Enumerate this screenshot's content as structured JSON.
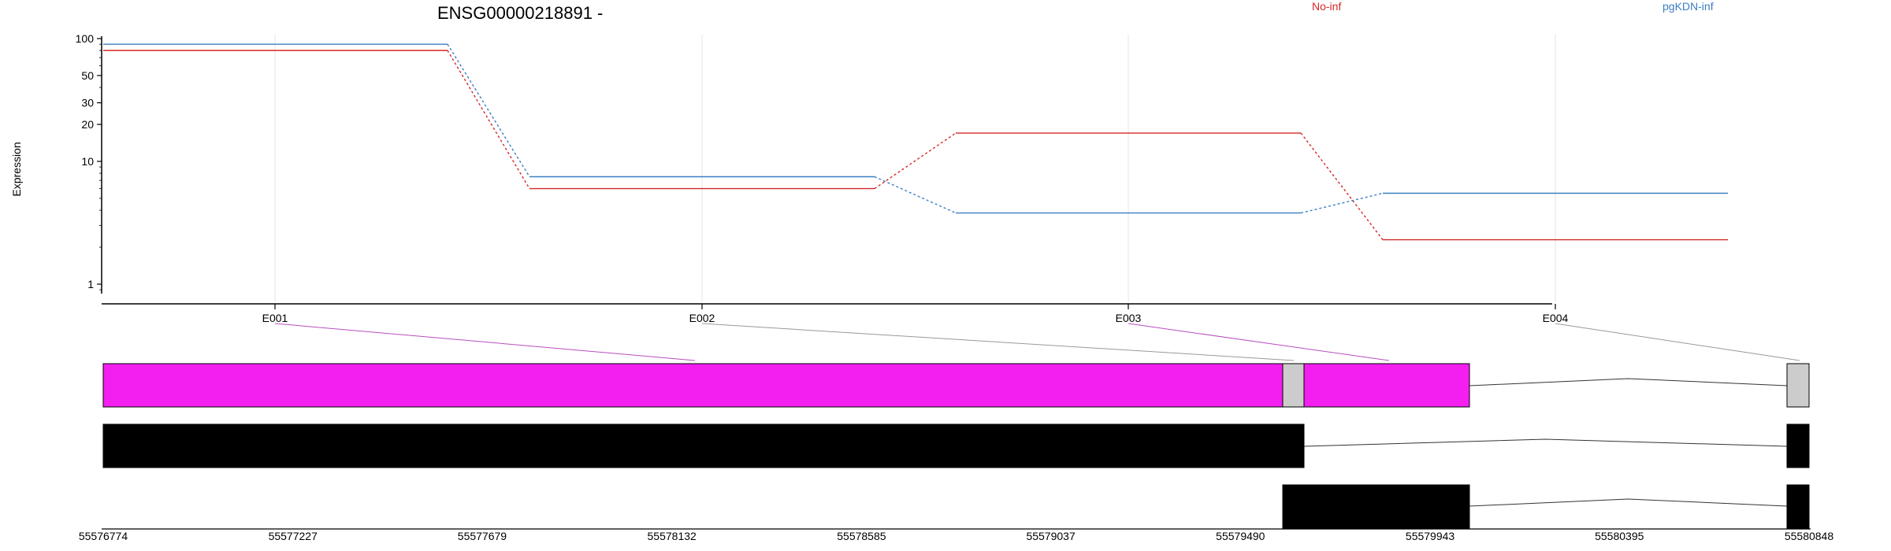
{
  "chart_data": {
    "type": "line",
    "title": "ENSG00000218891 -",
    "ylabel": "Expression",
    "yscale": "log",
    "ylim": [
      0.5,
      100
    ],
    "yticks": [
      "100",
      "50",
      "30",
      "20",
      "10",
      "1"
    ],
    "ytick_values": [
      100,
      50,
      30,
      20,
      10,
      1
    ],
    "categories": [
      "E001",
      "E002",
      "E003",
      "E004"
    ],
    "series": [
      {
        "name": "No-inf",
        "color": "#d62728",
        "values": [
          80,
          6,
          17,
          2.3
        ]
      },
      {
        "name": "pgKDN-inf",
        "color": "#3a7fc1",
        "values": [
          90,
          7.5,
          3.8,
          5.5
        ]
      }
    ],
    "grid": "vertical"
  },
  "gene_model": {
    "coords": [
      "55576774",
      "55577227",
      "55577679",
      "55578132",
      "55578585",
      "55579037",
      "55579490",
      "55579943",
      "55580395",
      "55580848"
    ],
    "coord_values": [
      55576774,
      55577227,
      55577679,
      55578132,
      55578585,
      55579037,
      55579490,
      55579943,
      55580395,
      55580848
    ],
    "exon_colors": {
      "highlight": "#f21ff0",
      "gray": "#cccccc",
      "black": "#000000"
    },
    "mapping_line_colors": [
      "#b84fc0",
      "#999999",
      "#b84fc0",
      "#999999"
    ]
  }
}
